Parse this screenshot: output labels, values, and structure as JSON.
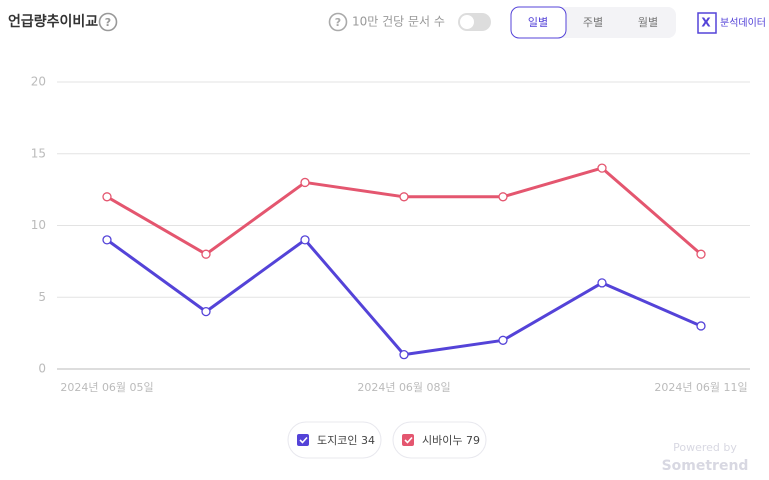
{
  "header": {
    "title": "언급량추이비교",
    "toggle_label": "10만 건당 문서 수",
    "tabs": [
      "일별",
      "주별",
      "월별"
    ],
    "export": "분석데이터"
  },
  "chart_data": {
    "type": "line",
    "categories": [
      "2024년 06월 05일",
      null,
      null,
      "2024년 06월 08일",
      null,
      null,
      "2024년 06월 11일"
    ],
    "series": [
      {
        "name": "도지코인",
        "total": 34,
        "color": "#5443d8",
        "values": [
          9,
          4,
          9,
          1,
          2,
          6,
          3
        ]
      },
      {
        "name": "시바이누",
        "total": 79,
        "color": "#e4566f",
        "values": [
          12,
          8,
          13,
          12,
          12,
          14,
          8
        ]
      }
    ],
    "ylim": [
      0,
      20
    ],
    "yticks": [
      0,
      5,
      10,
      15,
      20
    ],
    "grid": true
  },
  "footer": {
    "powered": "Powered by",
    "brand": "Sometrend"
  }
}
